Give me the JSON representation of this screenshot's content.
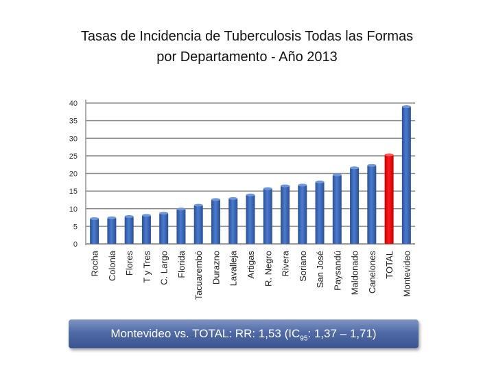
{
  "chart_data": {
    "type": "bar",
    "title_line1": "Tasas de Incidencia de Tuberculosis Todas las Formas",
    "title_line2": "por Departamento - Año 2013",
    "xlabel": "",
    "ylabel": "",
    "ylim": [
      0,
      40
    ],
    "yticks": [
      0,
      5,
      10,
      15,
      20,
      25,
      30,
      35,
      40
    ],
    "grid": true,
    "categories": [
      "Rocha",
      "Colonia",
      "Flores",
      "T y Tres",
      "C. Largo",
      "Florida",
      "Tacuarembó",
      "Durazno",
      "Lavalleja",
      "Artigas",
      "R. Negro",
      "Rivera",
      "Soriano",
      "San José",
      "Paysandú",
      "Maldonado",
      "Canelones",
      "TOTAL",
      "Montevideo"
    ],
    "values": [
      7.2,
      7.4,
      7.8,
      8.1,
      8.7,
      9.9,
      11.0,
      12.6,
      12.9,
      13.9,
      15.7,
      16.5,
      16.7,
      17.6,
      19.6,
      21.6,
      22.3,
      25.3,
      39.0
    ],
    "colors": {
      "default": "#3d6cc0",
      "highlight": "#ff0000"
    },
    "highlight_category": "TOTAL"
  },
  "footer": {
    "prefix": "Montevideo vs. TOTAL: RR: 1,53 (IC",
    "subscript": "95",
    "suffix": ": 1,37 – 1,71)"
  }
}
